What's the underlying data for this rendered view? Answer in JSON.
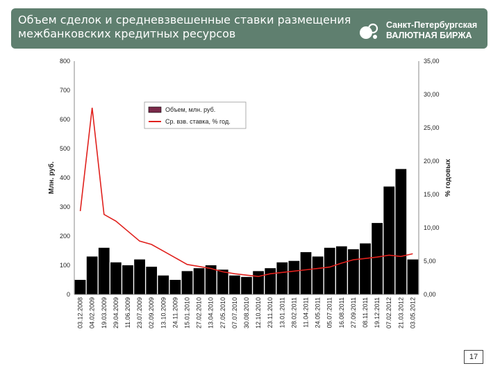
{
  "header": {
    "title_line1": "Объем сделок и средневзвешенные ставки размещения",
    "title_line2": "межбанковских кредитных ресурсов",
    "logo_line1": "Санкт-Петербургская",
    "logo_line2": "ВАЛЮТНАЯ БИРЖА"
  },
  "colors": {
    "header_bg": "#5f7f6f",
    "volume_series": "#000000",
    "rate_series": "#e0201c",
    "legend_volume_swatch": "#7a2a4a"
  },
  "page_number": "17",
  "chart_data": {
    "type": "bar",
    "xlabel": "",
    "ylabel": "Млн. руб.",
    "y2label": "% годовых",
    "ylim": [
      0,
      800
    ],
    "y2lim": [
      0,
      35
    ],
    "yticks": [
      "0",
      "100",
      "200",
      "300",
      "400",
      "500",
      "600",
      "700",
      "800"
    ],
    "y2ticks": [
      "0,00",
      "5,00",
      "10,00",
      "15,00",
      "20,00",
      "25,00",
      "30,00",
      "35,00"
    ],
    "grid": false,
    "legend_position": "top-center",
    "categories": [
      "03.12.2008",
      "04.02.2009",
      "19.03.2009",
      "29.04.2009",
      "11.06.2009",
      "23.07.2009",
      "02.09.2009",
      "13.10.2009",
      "24.11.2009",
      "15.01.2010",
      "27.02.2010",
      "13.04.2010",
      "27.05.2010",
      "07.07.2010",
      "30.08.2010",
      "12.10.2010",
      "23.11.2010",
      "13.01.2011",
      "28.02.2011",
      "11.04.2011",
      "24.05.2011",
      "05.07.2011",
      "16.08.2011",
      "27.09.2011",
      "08.11.2011",
      "19.12.2011",
      "07.02.2012",
      "21.03.2012",
      "03.05.2012"
    ],
    "series": [
      {
        "name": "Объем, млн. руб.",
        "type": "bar",
        "axis": "left",
        "values": [
          50,
          130,
          160,
          110,
          100,
          120,
          95,
          65,
          50,
          80,
          90,
          100,
          85,
          65,
          60,
          80,
          90,
          110,
          115,
          145,
          130,
          160,
          165,
          155,
          175,
          245,
          370,
          430,
          120
        ]
      },
      {
        "name": "Ср. взв. ставка, % год.",
        "type": "line",
        "axis": "right",
        "values": [
          12.5,
          28,
          12,
          11,
          9.5,
          8,
          7.5,
          6.5,
          5.5,
          4.5,
          4.2,
          3.9,
          3.4,
          3.1,
          2.9,
          2.7,
          3.1,
          3.3,
          3.5,
          3.7,
          3.9,
          4.1,
          4.7,
          5.2,
          5.4,
          5.6,
          5.9,
          5.7,
          6.1
        ]
      }
    ]
  }
}
